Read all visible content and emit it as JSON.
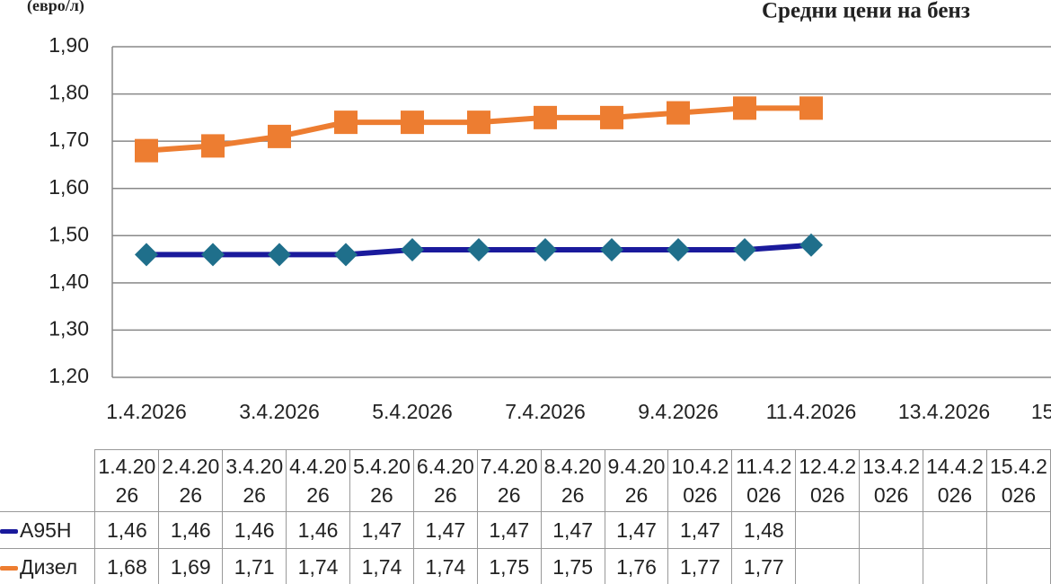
{
  "chart_data": {
    "type": "line",
    "title": "Средни цени на бенз",
    "y_label": "(евро/л)",
    "categories": [
      "1.4.2026",
      "2.4.2026",
      "3.4.2026",
      "4.4.2026",
      "5.4.2026",
      "6.4.2026",
      "7.4.2026",
      "8.4.2026",
      "9.4.2026",
      "10.4.2026",
      "11.4.2026",
      "12.4.2026",
      "13.4.2026",
      "14.4.2026",
      "15.4.2026"
    ],
    "series": [
      {
        "name": "A95H",
        "color": "#1a1a9c",
        "marker_color": "#1f6f8b",
        "marker": "diamond",
        "values": [
          1.46,
          1.46,
          1.46,
          1.46,
          1.47,
          1.47,
          1.47,
          1.47,
          1.47,
          1.47,
          1.48,
          null,
          null,
          null,
          null
        ],
        "value_labels": [
          "1,46",
          "1,46",
          "1,46",
          "1,46",
          "1,47",
          "1,47",
          "1,47",
          "1,47",
          "1,47",
          "1,47",
          "1,48",
          null,
          null,
          null,
          null
        ]
      },
      {
        "name": "Дизел",
        "color": "#ed7d31",
        "marker_color": "#ed7d31",
        "marker": "square",
        "values": [
          1.68,
          1.69,
          1.71,
          1.74,
          1.74,
          1.74,
          1.75,
          1.75,
          1.76,
          1.77,
          1.77,
          null,
          null,
          null,
          null
        ],
        "value_labels": [
          "1,68",
          "1,69",
          "1,71",
          "1,74",
          "1,74",
          "1,74",
          "1,75",
          "1,75",
          "1,76",
          "1,77",
          "1,77",
          null,
          null,
          null,
          null
        ]
      }
    ],
    "ylim": [
      1.2,
      1.9
    ],
    "yticks": [
      {
        "value": 1.2,
        "label": "1,20"
      },
      {
        "value": 1.3,
        "label": "1,30"
      },
      {
        "value": 1.4,
        "label": "1,40"
      },
      {
        "value": 1.5,
        "label": "1,50"
      },
      {
        "value": 1.6,
        "label": "1,60"
      },
      {
        "value": 1.7,
        "label": "1,70"
      },
      {
        "value": 1.8,
        "label": "1,80"
      },
      {
        "value": 1.9,
        "label": "1,90"
      }
    ],
    "grid": true
  }
}
